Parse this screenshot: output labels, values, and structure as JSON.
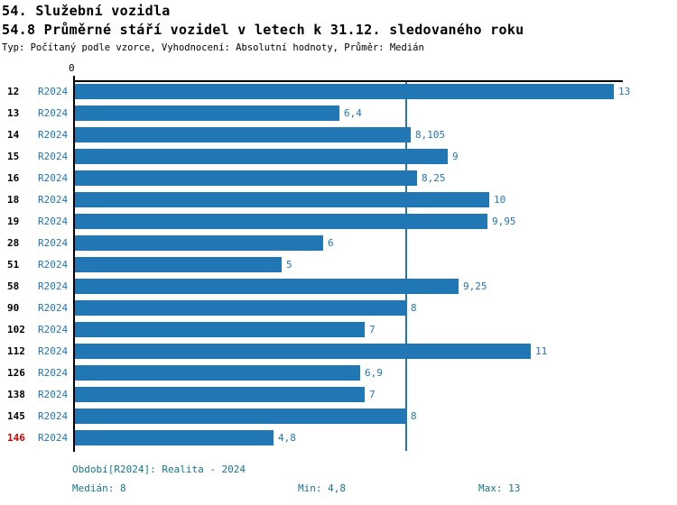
{
  "header": {
    "title_line1": "54. Služební vozidla",
    "title_line2": "54.8 Průměrné stáří vozidel v letech k 31.12. sledovaného roku",
    "subtitle": "Typ: Počítaný podle vzorce, Vyhodnocení: Absolutní hodnoty, Průměr: Medián"
  },
  "chart_data": {
    "type": "bar",
    "orientation": "horizontal",
    "title": "54.8 Průměrné stáří vozidel v letech k 31.12. sledovaného roku",
    "xlabel": "",
    "ylabel": "",
    "xlim": [
      0,
      13.2
    ],
    "axis_origin_label": "0",
    "median_reference_line": 8,
    "legend_position": "none",
    "grid": "median-line-only",
    "series_name": "R2024",
    "categories": [
      "12",
      "13",
      "14",
      "15",
      "16",
      "18",
      "19",
      "28",
      "51",
      "58",
      "90",
      "102",
      "112",
      "126",
      "138",
      "145",
      "146"
    ],
    "rows": [
      {
        "org": "12",
        "period": "R2024",
        "value": 13,
        "label": "13",
        "highlight": false
      },
      {
        "org": "13",
        "period": "R2024",
        "value": 6.4,
        "label": "6,4",
        "highlight": false
      },
      {
        "org": "14",
        "period": "R2024",
        "value": 8.105,
        "label": "8,105",
        "highlight": false
      },
      {
        "org": "15",
        "period": "R2024",
        "value": 9,
        "label": "9",
        "highlight": false
      },
      {
        "org": "16",
        "period": "R2024",
        "value": 8.25,
        "label": "8,25",
        "highlight": false
      },
      {
        "org": "18",
        "period": "R2024",
        "value": 10,
        "label": "10",
        "highlight": false
      },
      {
        "org": "19",
        "period": "R2024",
        "value": 9.95,
        "label": "9,95",
        "highlight": false
      },
      {
        "org": "28",
        "period": "R2024",
        "value": 6,
        "label": "6",
        "highlight": false
      },
      {
        "org": "51",
        "period": "R2024",
        "value": 5,
        "label": "5",
        "highlight": false
      },
      {
        "org": "58",
        "period": "R2024",
        "value": 9.25,
        "label": "9,25",
        "highlight": false
      },
      {
        "org": "90",
        "period": "R2024",
        "value": 8,
        "label": "8",
        "highlight": false
      },
      {
        "org": "102",
        "period": "R2024",
        "value": 7,
        "label": "7",
        "highlight": false
      },
      {
        "org": "112",
        "period": "R2024",
        "value": 11,
        "label": "11",
        "highlight": false
      },
      {
        "org": "126",
        "period": "R2024",
        "value": 6.9,
        "label": "6,9",
        "highlight": false
      },
      {
        "org": "138",
        "period": "R2024",
        "value": 7,
        "label": "7",
        "highlight": false
      },
      {
        "org": "145",
        "period": "R2024",
        "value": 8,
        "label": "8",
        "highlight": false
      },
      {
        "org": "146",
        "period": "R2024",
        "value": 4.8,
        "label": "4,8",
        "highlight": true
      }
    ],
    "colors": {
      "bar": "#2077b4",
      "median_line": "#2077b4",
      "value_label": "#2077b4",
      "period_label": "#2077b4",
      "org_label": "#000000",
      "org_label_highlight": "#d40000",
      "axis": "#000000",
      "footer_text": "#17748b"
    }
  },
  "footer": {
    "period_info": "Období[R2024]: Realita - 2024",
    "median": "Medián: 8",
    "min": "Min: 4,8",
    "max": "Max: 13"
  }
}
